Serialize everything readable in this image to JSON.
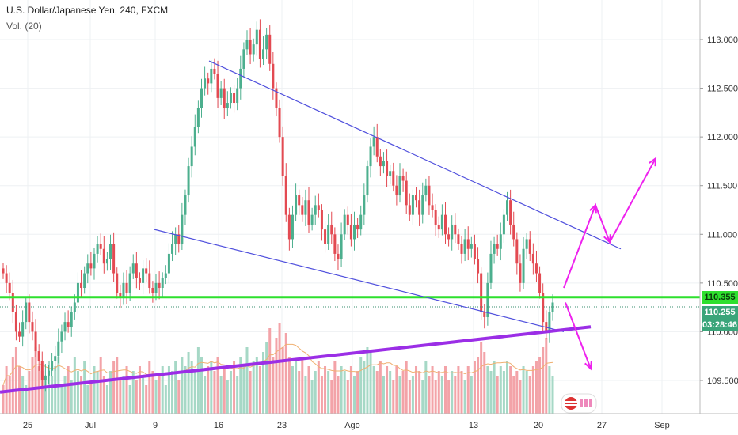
{
  "header": {
    "title": "U.S. Dollar/Japanese Yen, 240, FXCM",
    "volume_label": "Vol. (20)"
  },
  "price_tags": {
    "level": "110.355",
    "last": "110.255",
    "countdown": "03:28:46"
  },
  "colors": {
    "up": "#4caf8e",
    "down": "#e34a52",
    "vol_up": "#a6d8c6",
    "vol_down": "#f3a3a8",
    "support_line": "#2ee02e",
    "trend_line": "#5050dd",
    "purple_line": "#9b2ee6",
    "arrows": "#ee22ee",
    "ma": "#f0b070"
  },
  "chart_data": {
    "type": "candlestick",
    "title": "U.S. Dollar/Japanese Yen, 240, FXCM",
    "y_axis": {
      "ticks": [
        "113.000",
        "112.500",
        "112.000",
        "111.500",
        "111.000",
        "110.500",
        "110.000",
        "109.500"
      ],
      "range": [
        109.2,
        113.35
      ]
    },
    "x_axis": {
      "ticks": [
        "25",
        "Jul",
        "9",
        "16",
        "23",
        "Ago",
        "13",
        "20",
        "27",
        "Sep"
      ]
    },
    "horizontal_level": 110.355,
    "last_price": 110.255,
    "trend_lines": [
      {
        "name": "upper",
        "from": [
          264,
          112.78
        ],
        "to": [
          784,
          110.85
        ]
      },
      {
        "name": "lower",
        "from": [
          195,
          111.05
        ],
        "to": [
          712,
          110.0
        ]
      },
      {
        "name": "purple",
        "from": [
          0,
          109.38
        ],
        "to": [
          746,
          110.05
        ]
      }
    ],
    "projection_arrows": [
      {
        "points": [
          [
            712,
            110.45
          ],
          [
            752,
            111.3
          ],
          [
            770,
            110.92
          ],
          [
            828,
            111.78
          ]
        ]
      },
      {
        "points": [
          [
            714,
            110.3
          ],
          [
            746,
            109.62
          ]
        ]
      }
    ],
    "closes": [
      110.6,
      110.5,
      110.4,
      110.2,
      110.0,
      109.95,
      110.1,
      110.3,
      110.1,
      110.0,
      109.8,
      109.7,
      109.5,
      109.55,
      109.6,
      109.7,
      109.75,
      109.9,
      110.0,
      110.1,
      110.05,
      110.2,
      110.3,
      110.5,
      110.45,
      110.6,
      110.7,
      110.65,
      110.8,
      110.9,
      110.85,
      110.7,
      110.75,
      110.9,
      110.6,
      110.4,
      110.35,
      110.5,
      110.4,
      110.6,
      110.7,
      110.55,
      110.5,
      110.65,
      110.6,
      110.45,
      110.4,
      110.5,
      110.45,
      110.55,
      110.6,
      110.8,
      110.9,
      111.0,
      110.9,
      111.2,
      111.4,
      111.7,
      111.9,
      112.1,
      112.3,
      112.5,
      112.6,
      112.55,
      112.7,
      112.65,
      112.4,
      112.5,
      112.3,
      112.35,
      112.45,
      112.35,
      112.5,
      112.7,
      112.9,
      113.0,
      112.85,
      112.95,
      113.1,
      112.8,
      112.9,
      113.05,
      112.75,
      112.5,
      112.3,
      112.0,
      111.6,
      111.2,
      110.95,
      111.2,
      111.4,
      111.3,
      111.2,
      111.35,
      111.1,
      111.2,
      111.3,
      111.25,
      111.05,
      110.9,
      111.1,
      111.0,
      110.8,
      110.75,
      111.0,
      111.2,
      111.1,
      110.95,
      111.1,
      111.05,
      111.2,
      111.4,
      111.7,
      111.9,
      112.0,
      111.8,
      111.7,
      111.75,
      111.6,
      111.65,
      111.5,
      111.4,
      111.6,
      111.55,
      111.3,
      111.2,
      111.4,
      111.35,
      111.2,
      111.4,
      111.5,
      111.3,
      111.25,
      111.1,
      111.05,
      111.2,
      111.0,
      110.95,
      111.1,
      111.0,
      110.9,
      110.8,
      110.95,
      110.85,
      110.9,
      110.75,
      110.6,
      110.2,
      110.15,
      110.5,
      110.8,
      110.9,
      110.85,
      111.0,
      111.2,
      111.35,
      111.1,
      110.95,
      110.7,
      110.5,
      110.85,
      110.95,
      110.8,
      110.7,
      110.6,
      110.4,
      110.1,
      110.0,
      110.2,
      110.3
    ],
    "volumes": [
      0.3,
      0.5,
      0.4,
      0.6,
      0.7,
      0.5,
      0.4,
      0.3,
      0.45,
      0.6,
      0.7,
      0.5,
      0.45,
      0.35,
      0.55,
      0.4,
      0.5,
      0.6,
      0.3,
      0.4,
      0.5,
      0.35,
      0.6,
      0.45,
      0.4,
      0.55,
      0.3,
      0.35,
      0.5,
      0.45,
      0.6,
      0.4,
      0.3,
      0.45,
      0.55,
      0.6,
      0.35,
      0.4,
      0.5,
      0.3,
      0.45,
      0.35,
      0.5,
      0.4,
      0.3,
      0.55,
      0.45,
      0.35,
      0.4,
      0.5,
      0.3,
      0.5,
      0.45,
      0.55,
      0.35,
      0.6,
      0.5,
      0.65,
      0.55,
      0.45,
      0.7,
      0.6,
      0.4,
      0.5,
      0.55,
      0.45,
      0.6,
      0.4,
      0.5,
      0.35,
      0.45,
      0.55,
      0.4,
      0.6,
      0.5,
      0.7,
      0.45,
      0.55,
      0.6,
      0.5,
      0.65,
      0.75,
      0.9,
      0.6,
      0.8,
      0.95,
      0.7,
      0.85,
      0.6,
      0.5,
      0.55,
      0.45,
      0.6,
      0.4,
      0.5,
      0.35,
      0.45,
      0.55,
      0.4,
      0.5,
      0.45,
      0.35,
      0.55,
      0.4,
      0.5,
      0.45,
      0.35,
      0.5,
      0.4,
      0.45,
      0.6,
      0.55,
      0.7,
      0.65,
      0.5,
      0.45,
      0.55,
      0.4,
      0.5,
      0.45,
      0.35,
      0.5,
      0.4,
      0.45,
      0.55,
      0.35,
      0.4,
      0.5,
      0.45,
      0.35,
      0.55,
      0.4,
      0.5,
      0.35,
      0.45,
      0.4,
      0.5,
      0.35,
      0.45,
      0.4,
      0.5,
      0.45,
      0.35,
      0.5,
      0.4,
      0.55,
      0.6,
      0.75,
      0.65,
      0.5,
      0.45,
      0.55,
      0.4,
      0.5,
      0.45,
      0.55,
      0.5,
      0.4,
      0.45,
      0.35,
      0.5,
      0.45,
      0.4,
      0.5,
      0.55,
      0.6,
      0.7,
      0.8,
      0.5,
      0.4
    ]
  }
}
